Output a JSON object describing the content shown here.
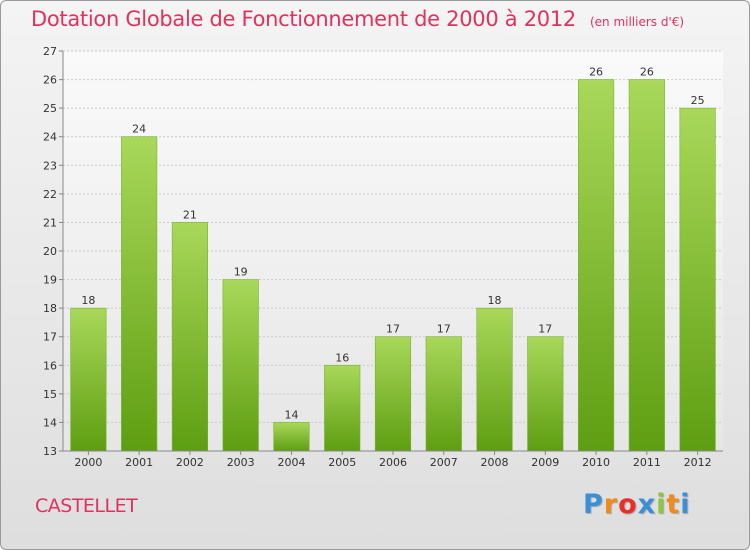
{
  "header": {
    "title": "Dotation Globale de Fonctionnement de 2000 à 2012",
    "subtitle": "(en milliers d'€)"
  },
  "footer": {
    "commune": "CASTELLET",
    "logo": {
      "text": "Proxiti",
      "letters": [
        "P",
        "r",
        "o",
        "x",
        "i",
        "t",
        "i"
      ],
      "colors": [
        "#3b8fd9",
        "#f08a1c",
        "#e8302b",
        "#3b8fd9",
        "#8dc63f",
        "#f08a1c",
        "#3b8fd9"
      ]
    }
  },
  "colors": {
    "title": "#e0325f",
    "bar_light": "#a9d85a",
    "bar_dark": "#5e9e12",
    "grid": "#c9c9c9",
    "axis": "#888888"
  },
  "chart_data": {
    "type": "bar",
    "title": "Dotation Globale de Fonctionnement de 2000 à 2012",
    "subtitle": "(en milliers d'€)",
    "categories": [
      "2000",
      "2001",
      "2002",
      "2003",
      "2004",
      "2005",
      "2006",
      "2007",
      "2008",
      "2009",
      "2010",
      "2011",
      "2012"
    ],
    "values": [
      18,
      24,
      21,
      19,
      14,
      16,
      17,
      17,
      18,
      17,
      26,
      26,
      25
    ],
    "ylim": [
      13,
      27
    ],
    "yticks": [
      13,
      14,
      15,
      16,
      17,
      18,
      19,
      20,
      21,
      22,
      23,
      24,
      25,
      26,
      27
    ],
    "grid": true,
    "data_labels": true,
    "xlabel": "",
    "ylabel": ""
  }
}
